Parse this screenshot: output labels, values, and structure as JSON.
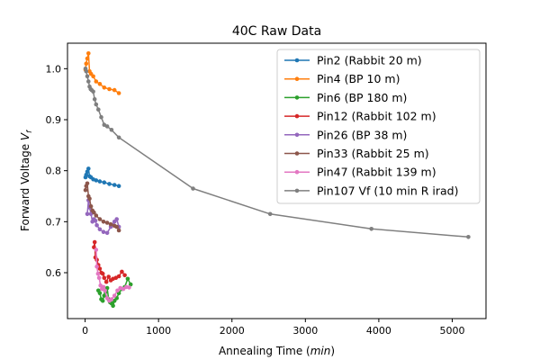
{
  "chart_data": {
    "type": "line",
    "title": "40C Raw Data",
    "xlabel": "Annealing Time (min)",
    "ylabel": "Forward Voltage Vf",
    "xlim": [
      -240,
      5460
    ],
    "ylim": [
      0.51,
      1.05
    ],
    "xticks": [
      0,
      1000,
      2000,
      3000,
      4000,
      5000
    ],
    "yticks": [
      0.6,
      0.7,
      0.8,
      0.9,
      1.0
    ],
    "xtick_labels": [
      "0",
      "1000",
      "2000",
      "3000",
      "4000",
      "5000"
    ],
    "ytick_labels": [
      "0.6",
      "0.7",
      "0.8",
      "0.9",
      "1.0"
    ],
    "grid": false,
    "legend_position": "upper right",
    "series": [
      {
        "name": "Pin2 (Rabbit 20 m)",
        "color": "#1f77b4",
        "x": [
          5,
          15,
          30,
          45,
          60,
          80,
          110,
          150,
          200,
          260,
          330,
          400,
          460
        ],
        "y": [
          0.787,
          0.792,
          0.798,
          0.804,
          0.789,
          0.787,
          0.783,
          0.781,
          0.779,
          0.777,
          0.774,
          0.772,
          0.77
        ]
      },
      {
        "name": "Pin4 (BP 10 m)",
        "color": "#ff7f0e",
        "x": [
          5,
          15,
          30,
          45,
          60,
          80,
          110,
          150,
          200,
          260,
          330,
          400,
          460
        ],
        "y": [
          0.998,
          1.01,
          1.02,
          1.03,
          0.995,
          0.99,
          0.985,
          0.975,
          0.97,
          0.963,
          0.96,
          0.958,
          0.952
        ]
      },
      {
        "name": "Pin6 (BP 180 m)",
        "color": "#2ca02c",
        "x": [
          180,
          200,
          220,
          240,
          260,
          280,
          300,
          320,
          340,
          360,
          380,
          400,
          430,
          460,
          500,
          540,
          580,
          620
        ],
        "y": [
          0.565,
          0.56,
          0.548,
          0.545,
          0.555,
          0.562,
          0.57,
          0.548,
          0.542,
          0.54,
          0.535,
          0.545,
          0.55,
          0.56,
          0.568,
          0.572,
          0.588,
          0.577
        ]
      },
      {
        "name": "Pin12 (Rabbit 102 m)",
        "color": "#d62728",
        "x": [
          120,
          130,
          140,
          160,
          180,
          200,
          220,
          240,
          260,
          290,
          320,
          350,
          380,
          420,
          460,
          500,
          540
        ],
        "y": [
          0.65,
          0.66,
          0.63,
          0.625,
          0.615,
          0.608,
          0.6,
          0.598,
          0.59,
          0.582,
          0.592,
          0.585,
          0.588,
          0.59,
          0.593,
          0.602,
          0.595
        ]
      },
      {
        "name": "Pin26 (BP 38 m)",
        "color": "#9467bd",
        "x": [
          30,
          45,
          60,
          80,
          100,
          120,
          140,
          160,
          200,
          250,
          300,
          350,
          400,
          430,
          460
        ],
        "y": [
          0.715,
          0.742,
          0.728,
          0.715,
          0.7,
          0.705,
          0.702,
          0.693,
          0.685,
          0.68,
          0.678,
          0.69,
          0.7,
          0.705,
          0.69
        ]
      },
      {
        "name": "Pin33 (Rabbit 25 m)",
        "color": "#8c564b",
        "x": [
          5,
          15,
          30,
          45,
          60,
          80,
          100,
          120,
          150,
          200,
          250,
          300,
          350,
          400,
          430,
          460
        ],
        "y": [
          0.762,
          0.77,
          0.775,
          0.75,
          0.745,
          0.73,
          0.722,
          0.718,
          0.712,
          0.705,
          0.7,
          0.698,
          0.695,
          0.692,
          0.69,
          0.683
        ]
      },
      {
        "name": "Pin47 (Rabbit 139 m)",
        "color": "#e377c2",
        "x": [
          150,
          160,
          175,
          190,
          210,
          230,
          250,
          270,
          300,
          330,
          360,
          400,
          440,
          480,
          520,
          560,
          600
        ],
        "y": [
          0.645,
          0.612,
          0.598,
          0.59,
          0.575,
          0.568,
          0.572,
          0.565,
          0.55,
          0.545,
          0.548,
          0.555,
          0.565,
          0.57,
          0.568,
          0.572,
          0.571
        ]
      },
      {
        "name": "Pin107 Vf (10 min R irad)",
        "color": "#7f7f7f",
        "x": [
          5,
          15,
          30,
          45,
          60,
          75,
          90,
          110,
          130,
          150,
          180,
          220,
          260,
          300,
          360,
          460,
          1470,
          2520,
          3900,
          5220
        ],
        "y": [
          1.0,
          0.995,
          0.985,
          0.975,
          0.965,
          0.96,
          0.958,
          0.955,
          0.94,
          0.93,
          0.92,
          0.905,
          0.89,
          0.887,
          0.88,
          0.865,
          0.765,
          0.715,
          0.686,
          0.67
        ]
      }
    ]
  }
}
